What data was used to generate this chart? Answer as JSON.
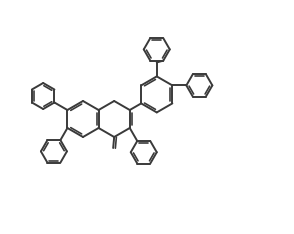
{
  "bg_color": "#ffffff",
  "line_color": "#3a3a3a",
  "line_width": 1.4,
  "figsize": [
    2.94,
    2.34
  ],
  "dpi": 100,
  "ring_r": 18,
  "ph_r": 13
}
